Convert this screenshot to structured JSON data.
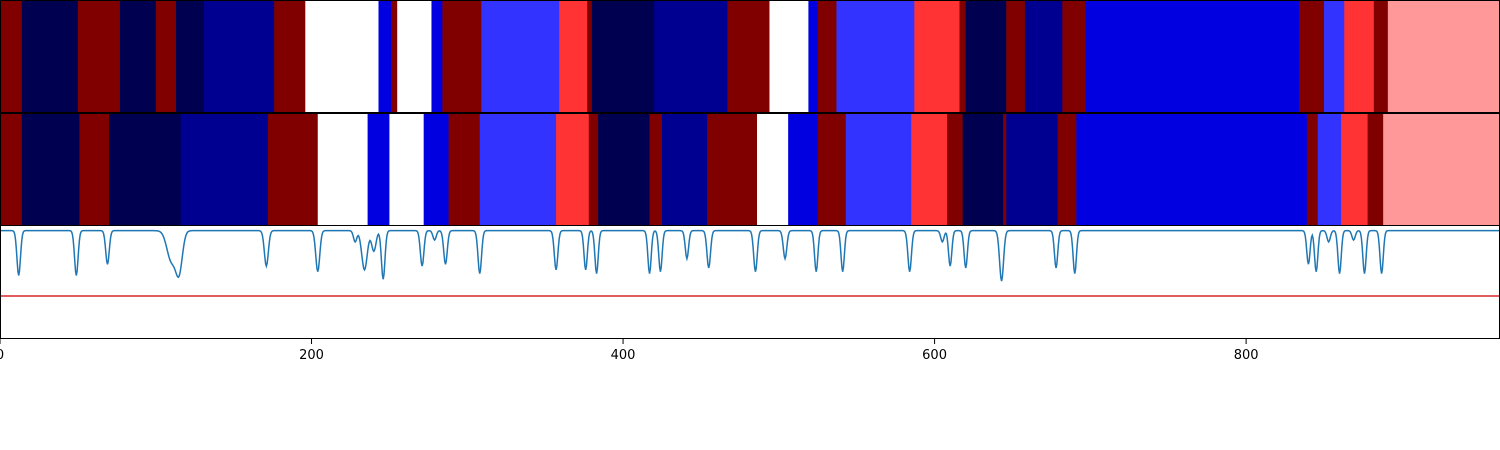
{
  "chart_data": {
    "type": "heatmap",
    "x_axis": {
      "range": [
        0,
        963
      ],
      "ticks": [
        0,
        200,
        400,
        600,
        800
      ]
    },
    "palette": {
      "dark_red": "#800000",
      "red": "#ff3333",
      "light_red": "#ff9999",
      "white": "#ffffff",
      "navy": "#000050",
      "dark_blue": "#000090",
      "blue": "#0000e0",
      "medium_blue": "#3333ff"
    },
    "track_1_segments": [
      {
        "x0": 0,
        "x1": 14,
        "color": "dark_red"
      },
      {
        "x0": 14,
        "x1": 50,
        "color": "navy"
      },
      {
        "x0": 50,
        "x1": 77,
        "color": "dark_red"
      },
      {
        "x0": 77,
        "x1": 100,
        "color": "navy"
      },
      {
        "x0": 100,
        "x1": 113,
        "color": "dark_red"
      },
      {
        "x0": 113,
        "x1": 131,
        "color": "navy"
      },
      {
        "x0": 131,
        "x1": 176,
        "color": "dark_blue"
      },
      {
        "x0": 176,
        "x1": 196,
        "color": "dark_red"
      },
      {
        "x0": 196,
        "x1": 243,
        "color": "white"
      },
      {
        "x0": 243,
        "x1": 251,
        "color": "blue"
      },
      {
        "x0": 251,
        "x1": 255,
        "color": "dark_red"
      },
      {
        "x0": 255,
        "x1": 277,
        "color": "white"
      },
      {
        "x0": 277,
        "x1": 284,
        "color": "blue"
      },
      {
        "x0": 284,
        "x1": 309,
        "color": "dark_red"
      },
      {
        "x0": 309,
        "x1": 359,
        "color": "medium_blue"
      },
      {
        "x0": 359,
        "x1": 377,
        "color": "red"
      },
      {
        "x0": 377,
        "x1": 380,
        "color": "dark_red"
      },
      {
        "x0": 380,
        "x1": 420,
        "color": "navy"
      },
      {
        "x0": 420,
        "x1": 467,
        "color": "dark_blue"
      },
      {
        "x0": 467,
        "x1": 494,
        "color": "dark_red"
      },
      {
        "x0": 494,
        "x1": 519,
        "color": "white"
      },
      {
        "x0": 519,
        "x1": 525,
        "color": "blue"
      },
      {
        "x0": 525,
        "x1": 537,
        "color": "dark_red"
      },
      {
        "x0": 537,
        "x1": 587,
        "color": "medium_blue"
      },
      {
        "x0": 587,
        "x1": 616,
        "color": "red"
      },
      {
        "x0": 616,
        "x1": 620,
        "color": "dark_red"
      },
      {
        "x0": 620,
        "x1": 646,
        "color": "navy"
      },
      {
        "x0": 646,
        "x1": 658,
        "color": "dark_red"
      },
      {
        "x0": 658,
        "x1": 682,
        "color": "dark_blue"
      },
      {
        "x0": 682,
        "x1": 697,
        "color": "dark_red"
      },
      {
        "x0": 697,
        "x1": 834,
        "color": "blue"
      },
      {
        "x0": 834,
        "x1": 850,
        "color": "dark_red"
      },
      {
        "x0": 850,
        "x1": 863,
        "color": "medium_blue"
      },
      {
        "x0": 863,
        "x1": 882,
        "color": "red"
      },
      {
        "x0": 882,
        "x1": 891,
        "color": "dark_red"
      },
      {
        "x0": 891,
        "x1": 963,
        "color": "light_red"
      }
    ],
    "track_2_segments": [
      {
        "x0": 0,
        "x1": 14,
        "color": "dark_red"
      },
      {
        "x0": 14,
        "x1": 51,
        "color": "navy"
      },
      {
        "x0": 51,
        "x1": 70,
        "color": "dark_red"
      },
      {
        "x0": 70,
        "x1": 116,
        "color": "navy"
      },
      {
        "x0": 116,
        "x1": 172,
        "color": "dark_blue"
      },
      {
        "x0": 172,
        "x1": 204,
        "color": "dark_red"
      },
      {
        "x0": 204,
        "x1": 236,
        "color": "white"
      },
      {
        "x0": 236,
        "x1": 250,
        "color": "blue"
      },
      {
        "x0": 250,
        "x1": 272,
        "color": "white"
      },
      {
        "x0": 272,
        "x1": 288,
        "color": "blue"
      },
      {
        "x0": 288,
        "x1": 308,
        "color": "dark_red"
      },
      {
        "x0": 308,
        "x1": 357,
        "color": "medium_blue"
      },
      {
        "x0": 357,
        "x1": 378,
        "color": "red"
      },
      {
        "x0": 378,
        "x1": 384,
        "color": "dark_red"
      },
      {
        "x0": 384,
        "x1": 417,
        "color": "navy"
      },
      {
        "x0": 417,
        "x1": 425,
        "color": "dark_red"
      },
      {
        "x0": 425,
        "x1": 454,
        "color": "dark_blue"
      },
      {
        "x0": 454,
        "x1": 486,
        "color": "dark_red"
      },
      {
        "x0": 486,
        "x1": 506,
        "color": "white"
      },
      {
        "x0": 506,
        "x1": 525,
        "color": "blue"
      },
      {
        "x0": 525,
        "x1": 543,
        "color": "dark_red"
      },
      {
        "x0": 543,
        "x1": 585,
        "color": "medium_blue"
      },
      {
        "x0": 585,
        "x1": 608,
        "color": "red"
      },
      {
        "x0": 608,
        "x1": 618,
        "color": "dark_red"
      },
      {
        "x0": 618,
        "x1": 644,
        "color": "navy"
      },
      {
        "x0": 644,
        "x1": 646,
        "color": "dark_red"
      },
      {
        "x0": 646,
        "x1": 679,
        "color": "dark_blue"
      },
      {
        "x0": 679,
        "x1": 691,
        "color": "dark_red"
      },
      {
        "x0": 691,
        "x1": 839,
        "color": "blue"
      },
      {
        "x0": 839,
        "x1": 846,
        "color": "dark_red"
      },
      {
        "x0": 846,
        "x1": 861,
        "color": "medium_blue"
      },
      {
        "x0": 861,
        "x1": 878,
        "color": "red"
      },
      {
        "x0": 878,
        "x1": 888,
        "color": "dark_red"
      },
      {
        "x0": 888,
        "x1": 963,
        "color": "light_red"
      }
    ],
    "signal": {
      "color": "#1f77b4",
      "ylim": [
        -1.15,
        0.05
      ],
      "baseline": 0,
      "dips": [
        {
          "x": 12,
          "depth": 0.48,
          "width": 1.6
        },
        {
          "x": 49,
          "depth": 0.48,
          "width": 1.6
        },
        {
          "x": 69,
          "depth": 0.36,
          "width": 1.6
        },
        {
          "x": 110,
          "depth": 0.32,
          "width": 4
        },
        {
          "x": 115,
          "depth": 0.42,
          "width": 3
        },
        {
          "x": 171,
          "depth": 0.38,
          "width": 1.8
        },
        {
          "x": 204,
          "depth": 0.44,
          "width": 1.8
        },
        {
          "x": 228,
          "depth": 0.12,
          "width": 1.5
        },
        {
          "x": 234,
          "depth": 0.42,
          "width": 2.5
        },
        {
          "x": 240,
          "depth": 0.22,
          "width": 2
        },
        {
          "x": 246,
          "depth": 0.52,
          "width": 1.6
        },
        {
          "x": 271,
          "depth": 0.38,
          "width": 1.6
        },
        {
          "x": 279,
          "depth": 0.1,
          "width": 1.5
        },
        {
          "x": 286,
          "depth": 0.36,
          "width": 1.6
        },
        {
          "x": 308,
          "depth": 0.46,
          "width": 1.6
        },
        {
          "x": 357,
          "depth": 0.42,
          "width": 1.6
        },
        {
          "x": 376,
          "depth": 0.42,
          "width": 1.5
        },
        {
          "x": 383,
          "depth": 0.46,
          "width": 1.5
        },
        {
          "x": 417,
          "depth": 0.46,
          "width": 1.5
        },
        {
          "x": 424,
          "depth": 0.44,
          "width": 1.5
        },
        {
          "x": 441,
          "depth": 0.3,
          "width": 1.5
        },
        {
          "x": 455,
          "depth": 0.4,
          "width": 1.6
        },
        {
          "x": 485,
          "depth": 0.44,
          "width": 1.6
        },
        {
          "x": 504,
          "depth": 0.3,
          "width": 1.6
        },
        {
          "x": 524,
          "depth": 0.44,
          "width": 1.5
        },
        {
          "x": 541,
          "depth": 0.44,
          "width": 1.5
        },
        {
          "x": 584,
          "depth": 0.44,
          "width": 1.6
        },
        {
          "x": 605,
          "depth": 0.12,
          "width": 1.5
        },
        {
          "x": 610,
          "depth": 0.38,
          "width": 1.5
        },
        {
          "x": 620,
          "depth": 0.4,
          "width": 1.5
        },
        {
          "x": 643,
          "depth": 0.54,
          "width": 1.8
        },
        {
          "x": 678,
          "depth": 0.4,
          "width": 1.5
        },
        {
          "x": 690,
          "depth": 0.46,
          "width": 1.5
        },
        {
          "x": 840,
          "depth": 0.36,
          "width": 1.5
        },
        {
          "x": 845,
          "depth": 0.44,
          "width": 1.5
        },
        {
          "x": 853,
          "depth": 0.12,
          "width": 1.5
        },
        {
          "x": 860,
          "depth": 0.46,
          "width": 1.5
        },
        {
          "x": 869,
          "depth": 0.1,
          "width": 1.5
        },
        {
          "x": 876,
          "depth": 0.46,
          "width": 1.5
        },
        {
          "x": 887,
          "depth": 0.46,
          "width": 1.5
        }
      ]
    },
    "threshold": {
      "value": -0.7,
      "color": "#d62728"
    },
    "grid": false
  }
}
